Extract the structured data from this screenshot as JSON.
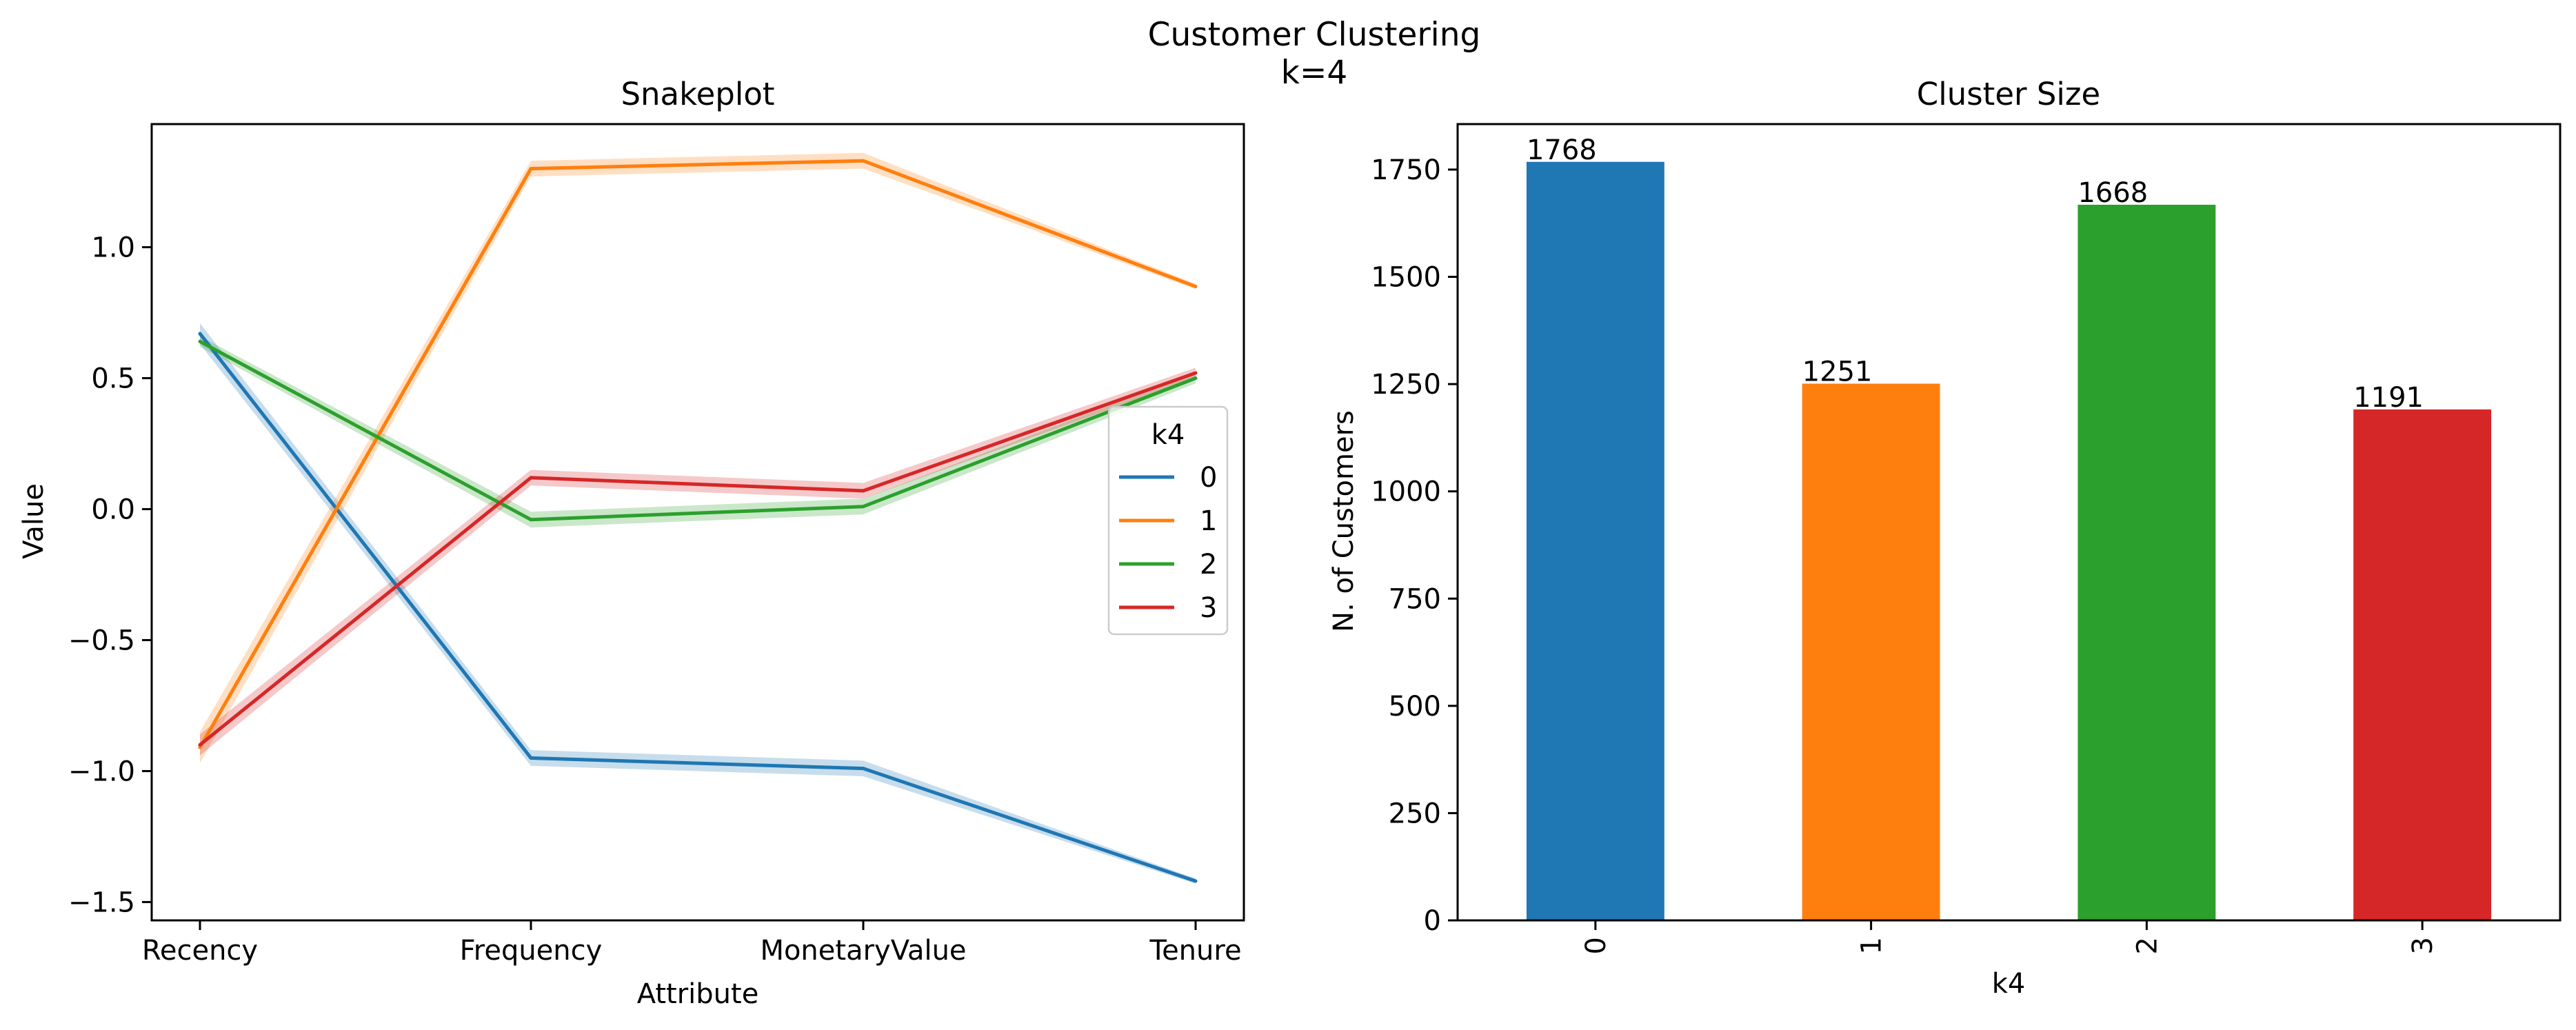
{
  "figure": {
    "suptitle_line1": "Customer Clustering",
    "suptitle_line2": "k=4"
  },
  "chart_data": [
    {
      "type": "line",
      "title": "Snakeplot",
      "xlabel": "Attribute",
      "ylabel": "Value",
      "categories": [
        "Recency",
        "Frequency",
        "MonetaryValue",
        "Tenure"
      ],
      "ylim": [
        -1.57,
        1.47
      ],
      "yticks": [
        1.0,
        0.5,
        0.0,
        -0.5,
        -1.0,
        -1.5
      ],
      "ytick_labels": [
        "1.0",
        "0.5",
        "0.0",
        "−0.5",
        "−1.0",
        "−1.5"
      ],
      "grid": false,
      "legend": {
        "title": "k4",
        "placement": "center-right"
      },
      "series": [
        {
          "name": "0",
          "color": "#1f77b4",
          "values": [
            0.67,
            -0.95,
            -0.99,
            -1.42
          ],
          "ci": [
            0.04,
            0.03,
            0.03,
            0.01
          ]
        },
        {
          "name": "1",
          "color": "#ff7f0e",
          "values": [
            -0.91,
            1.3,
            1.33,
            0.85
          ],
          "ci": [
            0.06,
            0.03,
            0.03,
            0.01
          ]
        },
        {
          "name": "2",
          "color": "#2ca02c",
          "values": [
            0.64,
            -0.04,
            0.01,
            0.5
          ],
          "ci": [
            0.02,
            0.03,
            0.03,
            0.02
          ]
        },
        {
          "name": "3",
          "color": "#d62728",
          "values": [
            -0.9,
            0.12,
            0.07,
            0.52
          ],
          "ci": [
            0.04,
            0.03,
            0.03,
            0.02
          ]
        }
      ]
    },
    {
      "type": "bar",
      "title": "Cluster Size",
      "xlabel": "k4",
      "ylabel": "N. of Customers",
      "categories": [
        "0",
        "1",
        "2",
        "3"
      ],
      "values": [
        1768,
        1251,
        1668,
        1191
      ],
      "data_labels": [
        "1768",
        "1251",
        "1668",
        "1191"
      ],
      "colors": [
        "#1f77b4",
        "#ff7f0e",
        "#2ca02c",
        "#d62728"
      ],
      "ylim": [
        0,
        1856
      ],
      "yticks": [
        0,
        250,
        500,
        750,
        1000,
        1250,
        1500,
        1750
      ],
      "ytick_labels": [
        "0",
        "250",
        "500",
        "750",
        "1000",
        "1250",
        "1500",
        "1750"
      ],
      "grid": false
    }
  ]
}
